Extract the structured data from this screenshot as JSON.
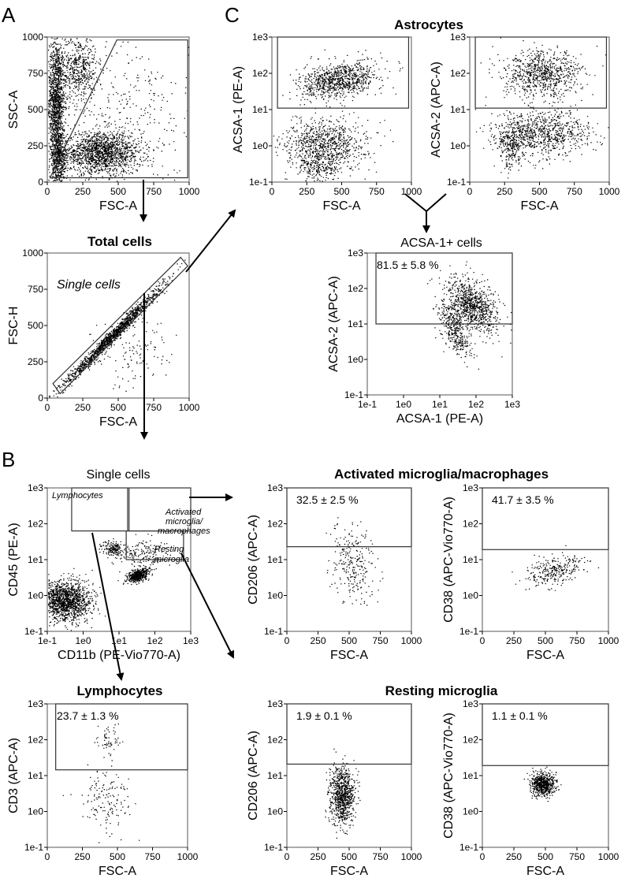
{
  "panel_labels": {
    "a": "A",
    "b": "B",
    "c": "C"
  },
  "titles": {
    "total_cells": "Total cells",
    "astrocytes": "Astrocytes",
    "acsa1_cells": "ACSA-1+ cells",
    "single_cells_b": "Single cells",
    "activated": "Activated microglia/macrophages",
    "lymphocytes": "Lymphocytes",
    "resting": "Resting microglia"
  },
  "gate_labels": {
    "single_cells": "Single cells",
    "lymphocytes": "Lymphocytes",
    "activated_line1": "Activated",
    "activated_line2": "microglia/",
    "activated_line3": "macrophages",
    "resting_line1": "Resting",
    "resting_line2": "microglia"
  },
  "chart_data": [
    {
      "id": "A1",
      "type": "scatter",
      "xlabel": "FSC-A",
      "ylabel": "SSC-A",
      "xlim": [
        0,
        1000
      ],
      "ylim": [
        0,
        1000
      ],
      "xticks": [
        "0",
        "250",
        "500",
        "750",
        "1000"
      ],
      "yticks": [
        "0",
        "250",
        "500",
        "750",
        "1000"
      ],
      "note": "gate: polygon excluding debris; arrow to Total cells"
    },
    {
      "id": "A2",
      "type": "scatter",
      "title": "Total cells",
      "xlabel": "FSC-A",
      "ylabel": "FSC-H",
      "xlim": [
        0,
        1000
      ],
      "ylim": [
        0,
        1000
      ],
      "xticks": [
        "0",
        "250",
        "500",
        "750",
        "1000"
      ],
      "yticks": [
        "0",
        "250",
        "500",
        "750",
        "1000"
      ],
      "gate": "Single cells"
    },
    {
      "id": "C1",
      "type": "scatter",
      "title": "Astrocytes",
      "xlabel": "FSC-A",
      "ylabel": "ACSA-1 (PE-A)",
      "xlim": [
        0,
        1000
      ],
      "ylim_log": [
        "1e-1",
        "1e3"
      ],
      "xticks": [
        "0",
        "250",
        "500",
        "750",
        "1000"
      ],
      "yticks": [
        "1e-1",
        "1e0",
        "1e1",
        "1e2",
        "1e3"
      ]
    },
    {
      "id": "C2",
      "type": "scatter",
      "xlabel": "FSC-A",
      "ylabel": "ACSA-2 (APC-A)",
      "xlim": [
        0,
        1000
      ],
      "ylim_log": [
        "1e-1",
        "1e3"
      ],
      "xticks": [
        "0",
        "250",
        "500",
        "750",
        "1000"
      ],
      "yticks": [
        "1e-1",
        "1e0",
        "1e1",
        "1e2",
        "1e3"
      ]
    },
    {
      "id": "C3",
      "type": "scatter",
      "title": "ACSA-1+ cells",
      "xlabel": "ACSA-1 (PE-A)",
      "ylabel": "ACSA-2 (APC-A)",
      "xlim_log": [
        "1e-1",
        "1e3"
      ],
      "ylim_log": [
        "1e-1",
        "1e3"
      ],
      "xticks": [
        "1e-1",
        "1e0",
        "1e1",
        "1e2",
        "1e3"
      ],
      "yticks": [
        "1e-1",
        "1e0",
        "1e1",
        "1e2",
        "1e3"
      ],
      "gate_percent": "81.5 ± 5.8 %"
    },
    {
      "id": "B1",
      "type": "scatter",
      "title": "Single cells",
      "xlabel": "CD11b (PE-Vio770-A)",
      "ylabel": "CD45 (PE-A)",
      "xlim_log": [
        "1e-1",
        "1e3"
      ],
      "ylim_log": [
        "1e-1",
        "1e3"
      ],
      "xticks": [
        "1e-1",
        "1e0",
        "1e1",
        "1e2",
        "1e3"
      ],
      "yticks": [
        "1e-1",
        "1e0",
        "1e1",
        "1e2",
        "1e3"
      ],
      "gates": [
        "Lymphocytes",
        "Activated microglia/macrophages",
        "Resting microglia"
      ]
    },
    {
      "id": "B2",
      "type": "scatter",
      "title": "Activated microglia/macrophages",
      "xlabel": "FSC-A",
      "ylabel": "CD206 (APC-A)",
      "xlim": [
        0,
        1000
      ],
      "ylim_log": [
        "1e-1",
        "1e3"
      ],
      "xticks": [
        "0",
        "250",
        "500",
        "750",
        "1000"
      ],
      "yticks": [
        "1e-1",
        "1e0",
        "1e1",
        "1e2",
        "1e3"
      ],
      "gate_percent": "32.5 ± 2.5 %"
    },
    {
      "id": "B3",
      "type": "scatter",
      "xlabel": "FSC-A",
      "ylabel": "CD38 (APC-Vio770-A)",
      "xlim": [
        0,
        1000
      ],
      "ylim_log": [
        "1e-1",
        "1e3"
      ],
      "xticks": [
        "0",
        "250",
        "500",
        "750",
        "1000"
      ],
      "yticks": [
        "1e-1",
        "1e0",
        "1e1",
        "1e2",
        "1e3"
      ],
      "gate_percent": "41.7 ± 3.5 %"
    },
    {
      "id": "B4",
      "type": "scatter",
      "title": "Lymphocytes",
      "xlabel": "FSC-A",
      "ylabel": "CD3 (APC-A)",
      "xlim": [
        0,
        1000
      ],
      "ylim_log": [
        "1e-1",
        "1e3"
      ],
      "xticks": [
        "0",
        "250",
        "500",
        "750",
        "1000"
      ],
      "yticks": [
        "1e-1",
        "1e0",
        "1e1",
        "1e2",
        "1e3"
      ],
      "gate_percent": "23.7 ± 1.3 %"
    },
    {
      "id": "B5",
      "type": "scatter",
      "title": "Resting microglia",
      "xlabel": "FSC-A",
      "ylabel": "CD206 (APC-A)",
      "xlim": [
        0,
        1000
      ],
      "ylim_log": [
        "1e-1",
        "1e3"
      ],
      "xticks": [
        "0",
        "250",
        "500",
        "750",
        "1000"
      ],
      "yticks": [
        "1e-1",
        "1e0",
        "1e1",
        "1e2",
        "1e3"
      ],
      "gate_percent": "1.9 ± 0.1 %"
    },
    {
      "id": "B6",
      "type": "scatter",
      "xlabel": "FSC-A",
      "ylabel": "CD38 (APC-Vio770-A)",
      "xlim": [
        0,
        1000
      ],
      "ylim_log": [
        "1e-1",
        "1e3"
      ],
      "xticks": [
        "0",
        "250",
        "500",
        "750",
        "1000"
      ],
      "yticks": [
        "1e-1",
        "1e0",
        "1e1",
        "1e2",
        "1e3"
      ],
      "gate_percent": "1.1 ± 0.1 %"
    }
  ]
}
